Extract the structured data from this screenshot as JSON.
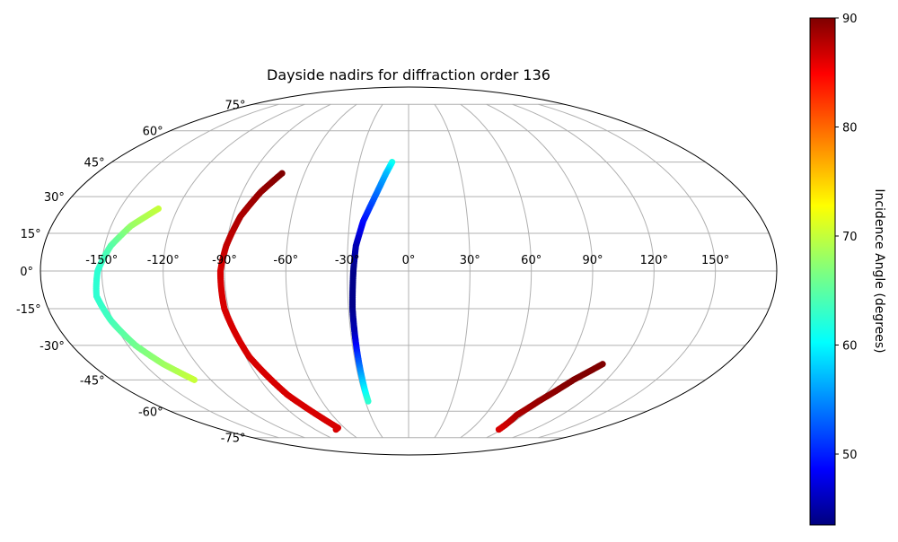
{
  "chart_data": {
    "type": "scatter",
    "projection": "mollweide",
    "title": "Dayside nadirs for diffraction order 136",
    "grid": true,
    "longitude_ticks": [
      -150,
      -120,
      -90,
      -60,
      -30,
      0,
      30,
      60,
      90,
      120,
      150
    ],
    "longitude_tick_labels": [
      "-150°",
      "-120°",
      "-90°",
      "-60°",
      "-30°",
      "0°",
      "30°",
      "60°",
      "90°",
      "120°",
      "150°"
    ],
    "latitude_ticks": [
      75,
      60,
      45,
      30,
      15,
      0,
      -15,
      -30,
      -45,
      -60,
      -75
    ],
    "latitude_tick_labels": [
      "75°",
      "60°",
      "45°",
      "30°",
      "15°",
      "0°",
      "-15°",
      "-30°",
      "-45°",
      "-60°",
      "-75°"
    ],
    "colorbar": {
      "label": "Incidence Angle (degrees)",
      "colormap": "jet",
      "range": [
        43.5,
        90
      ],
      "ticks": [
        50,
        60,
        70,
        80,
        90
      ],
      "tick_labels": [
        "50",
        "60",
        "70",
        "80",
        "90"
      ]
    },
    "series": [
      {
        "points": [
          {
            "lon": -130,
            "lat": 25,
            "incidence": 70
          },
          {
            "lon": -140,
            "lat": 18,
            "incidence": 68
          },
          {
            "lon": -147,
            "lat": 10,
            "incidence": 65
          },
          {
            "lon": -152,
            "lat": 0,
            "incidence": 63
          },
          {
            "lon": -154,
            "lat": -10,
            "incidence": 63
          },
          {
            "lon": -151,
            "lat": -20,
            "incidence": 64
          },
          {
            "lon": -146,
            "lat": -30,
            "incidence": 66
          },
          {
            "lon": -139,
            "lat": -38,
            "incidence": 68
          },
          {
            "lon": -130,
            "lat": -45,
            "incidence": 70
          }
        ]
      },
      {
        "points": [
          {
            "lon": -73,
            "lat": 40,
            "incidence": 90
          },
          {
            "lon": -80,
            "lat": 32,
            "incidence": 89
          },
          {
            "lon": -86,
            "lat": 22,
            "incidence": 88
          },
          {
            "lon": -90,
            "lat": 10,
            "incidence": 87
          },
          {
            "lon": -92,
            "lat": 0,
            "incidence": 86
          },
          {
            "lon": -92,
            "lat": -15,
            "incidence": 86
          },
          {
            "lon": -88,
            "lat": -35,
            "incidence": 86
          },
          {
            "lon": -80,
            "lat": -52,
            "incidence": 86
          },
          {
            "lon": -70,
            "lat": -64,
            "incidence": 86
          },
          {
            "lon": -66,
            "lat": -69,
            "incidence": 86
          },
          {
            "lon": -70,
            "lat": -70,
            "incidence": 86
          }
        ]
      },
      {
        "points": [
          {
            "lon": -10,
            "lat": 45,
            "incidence": 62
          },
          {
            "lon": -13,
            "lat": 40,
            "incidence": 58
          },
          {
            "lon": -18,
            "lat": 30,
            "incidence": 54
          },
          {
            "lon": -23,
            "lat": 20,
            "incidence": 50
          },
          {
            "lon": -26,
            "lat": 10,
            "incidence": 46
          },
          {
            "lon": -27,
            "lat": 0,
            "incidence": 44
          },
          {
            "lon": -28,
            "lat": -15,
            "incidence": 44
          },
          {
            "lon": -28,
            "lat": -25,
            "incidence": 46
          },
          {
            "lon": -28,
            "lat": -35,
            "incidence": 52
          },
          {
            "lon": -28,
            "lat": -45,
            "incidence": 58
          },
          {
            "lon": -28,
            "lat": -55,
            "incidence": 63
          }
        ]
      },
      {
        "points": [
          {
            "lon": 110,
            "lat": -38,
            "incidence": 90
          },
          {
            "lon": 100,
            "lat": -45,
            "incidence": 90
          },
          {
            "lon": 90,
            "lat": -55,
            "incidence": 89
          },
          {
            "lon": 85,
            "lat": -62,
            "incidence": 88
          },
          {
            "lon": 87,
            "lat": -70,
            "incidence": 86
          }
        ]
      }
    ]
  }
}
